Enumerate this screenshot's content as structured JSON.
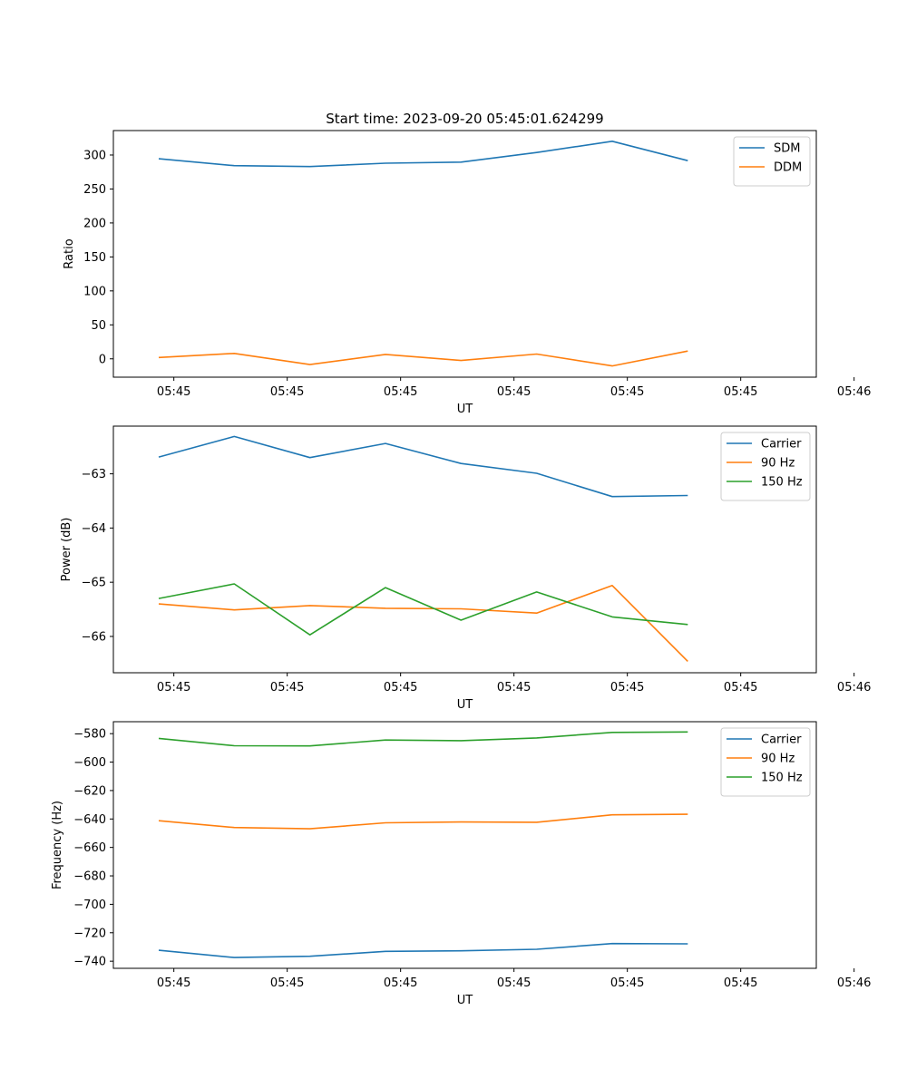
{
  "chart_data": [
    {
      "type": "line",
      "title": "Start time: 2023-09-20 05:45:01.624299",
      "xlabel": "UT",
      "ylabel": "Ratio",
      "x_tick_labels": [
        "05:45",
        "05:45",
        "05:45",
        "05:45",
        "05:45",
        "05:45",
        "05:46"
      ],
      "y_tick_values": [
        0,
        50,
        100,
        150,
        200,
        250,
        300
      ],
      "y_tick_labels": [
        "0",
        "50",
        "100",
        "150",
        "200",
        "250",
        "300"
      ],
      "xlim": [
        -0.6,
        8.7
      ],
      "ylim": [
        -27,
        336
      ],
      "legend_position": "top-right",
      "grid": false,
      "x": [
        0,
        1,
        2,
        3,
        4,
        5,
        6,
        7
      ],
      "series": [
        {
          "name": "SDM",
          "color": "#1f77b4",
          "values": [
            294.5,
            284.3,
            283.0,
            287.9,
            289.5,
            303.7,
            320.2,
            291.7
          ]
        },
        {
          "name": "DDM",
          "color": "#ff7f0e",
          "values": [
            2.0,
            8.0,
            -8.5,
            6.5,
            -2.5,
            7.0,
            -10.5,
            11.5
          ]
        }
      ]
    },
    {
      "type": "line",
      "title": "",
      "xlabel": "UT",
      "ylabel": "Power (dB)",
      "x_tick_labels": [
        "05:45",
        "05:45",
        "05:45",
        "05:45",
        "05:45",
        "05:45",
        "05:46"
      ],
      "y_tick_values": [
        -63,
        -64,
        -65,
        -66
      ],
      "y_tick_labels": [
        "−63",
        "−64",
        "−65",
        "−66"
      ],
      "xlim": [
        -0.6,
        8.7
      ],
      "ylim": [
        -66.67,
        -62.12
      ],
      "legend_position": "top-right",
      "grid": false,
      "x": [
        0,
        1,
        2,
        3,
        4,
        5,
        6,
        7
      ],
      "series": [
        {
          "name": "Carrier",
          "color": "#1f77b4",
          "values": [
            -62.69,
            -62.31,
            -62.7,
            -62.44,
            -62.81,
            -62.99,
            -63.42,
            -63.4
          ]
        },
        {
          "name": "90 Hz",
          "color": "#ff7f0e",
          "values": [
            -65.4,
            -65.51,
            -65.43,
            -65.48,
            -65.49,
            -65.57,
            -65.06,
            -66.46
          ]
        },
        {
          "name": "150 Hz",
          "color": "#2ca02c",
          "values": [
            -65.3,
            -65.03,
            -65.97,
            -65.1,
            -65.7,
            -65.18,
            -65.64,
            -65.78
          ]
        }
      ]
    },
    {
      "type": "line",
      "title": "",
      "xlabel": "UT",
      "ylabel": "Frequency (Hz)",
      "x_tick_labels": [
        "05:45",
        "05:45",
        "05:45",
        "05:45",
        "05:45",
        "05:45",
        "05:46"
      ],
      "y_tick_values": [
        -580,
        -600,
        -620,
        -640,
        -660,
        -680,
        -700,
        -720,
        -740
      ],
      "y_tick_labels": [
        "−580",
        "−600",
        "−620",
        "−640",
        "−660",
        "−680",
        "−700",
        "−720",
        "−740"
      ],
      "xlim": [
        -0.6,
        8.7
      ],
      "ylim": [
        -745,
        -571.6
      ],
      "legend_position": "top-right",
      "grid": false,
      "x": [
        0,
        1,
        2,
        3,
        4,
        5,
        6,
        7
      ],
      "series": [
        {
          "name": "Carrier",
          "color": "#1f77b4",
          "values": [
            -732.3,
            -737.4,
            -736.5,
            -733.1,
            -732.7,
            -731.6,
            -727.6,
            -727.8
          ]
        },
        {
          "name": "90 Hz",
          "color": "#ff7f0e",
          "values": [
            -641.2,
            -646.0,
            -646.9,
            -642.7,
            -642.1,
            -642.3,
            -637.1,
            -636.7
          ]
        },
        {
          "name": "150 Hz",
          "color": "#2ca02c",
          "values": [
            -583.3,
            -588.5,
            -588.6,
            -584.5,
            -584.9,
            -583.0,
            -579.1,
            -578.8
          ]
        }
      ]
    }
  ]
}
